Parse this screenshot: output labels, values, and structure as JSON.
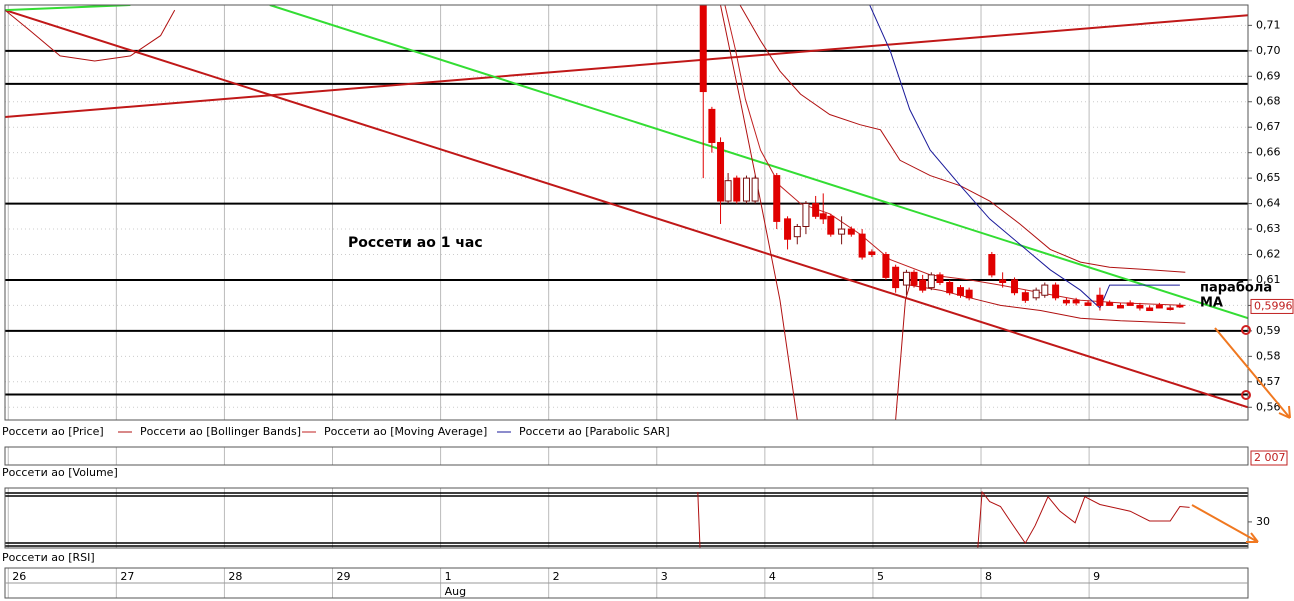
{
  "chart_data": [
    {
      "type": "candlestick",
      "title": "Россети ао  1 час",
      "annotations": [
        "парабола",
        "MA"
      ],
      "xlim": [
        -0.03,
        11.47
      ],
      "xticks": [
        {
          "value": 0,
          "label": "26"
        },
        {
          "value": 1,
          "label": "27"
        },
        {
          "value": 2,
          "label": "28"
        },
        {
          "value": 3,
          "label": "29"
        },
        {
          "value": 4,
          "label": "1"
        },
        {
          "value": 5,
          "label": "2"
        },
        {
          "value": 6,
          "label": "3"
        },
        {
          "value": 7,
          "label": "4"
        },
        {
          "value": 8,
          "label": "5"
        },
        {
          "value": 9,
          "label": "8"
        },
        {
          "value": 10,
          "label": "9"
        }
      ],
      "month_label": "Aug",
      "ylim": [
        0.555,
        0.718
      ],
      "yticks": [
        {
          "value": 0.56,
          "label": "0,56"
        },
        {
          "value": 0.57,
          "label": "0,57"
        },
        {
          "value": 0.58,
          "label": "0,58"
        },
        {
          "value": 0.59,
          "label": "0,59"
        },
        {
          "value": 0.6,
          "label": "0,60"
        },
        {
          "value": 0.61,
          "label": "0,61"
        },
        {
          "value": 0.62,
          "label": "0,62"
        },
        {
          "value": 0.63,
          "label": "0,63"
        },
        {
          "value": 0.64,
          "label": "0,64"
        },
        {
          "value": 0.65,
          "label": "0,65"
        },
        {
          "value": 0.66,
          "label": "0,66"
        },
        {
          "value": 0.67,
          "label": "0,67"
        },
        {
          "value": 0.68,
          "label": "0,68"
        },
        {
          "value": 0.69,
          "label": "0,69"
        },
        {
          "value": 0.7,
          "label": "0,70"
        },
        {
          "value": 0.71,
          "label": "0,71"
        }
      ],
      "grid": true,
      "last_price": {
        "value": 0.5996,
        "label": "0,5996"
      },
      "candles": {
        "name": "Россети ао [Price]",
        "color": "#e00000",
        "x": [
          6.43,
          6.51,
          6.59,
          6.66,
          6.74,
          6.83,
          6.91,
          7.11,
          7.21,
          7.3,
          7.38,
          7.47,
          7.54,
          7.61,
          7.71,
          7.8,
          7.9,
          7.99,
          8.12,
          8.21,
          8.31,
          8.38,
          8.46,
          8.54,
          8.62,
          8.71,
          8.81,
          8.89,
          9.1,
          9.2,
          9.31,
          9.41,
          9.51,
          9.59,
          9.69,
          9.79,
          9.88,
          9.99,
          10.1,
          10.19,
          10.29,
          10.38,
          10.47,
          10.56,
          10.65,
          10.75,
          10.84
        ],
        "open": [
          0.718,
          0.677,
          0.664,
          0.641,
          0.65,
          0.641,
          0.641,
          0.651,
          0.634,
          0.627,
          0.631,
          0.64,
          0.636,
          0.635,
          0.628,
          0.63,
          0.628,
          0.621,
          0.62,
          0.615,
          0.608,
          0.613,
          0.61,
          0.607,
          0.612,
          0.609,
          0.607,
          0.606,
          0.62,
          0.61,
          0.61,
          0.605,
          0.603,
          0.604,
          0.608,
          0.602,
          0.602,
          0.601,
          0.604,
          0.601,
          0.6,
          0.601,
          0.6,
          0.599,
          0.6,
          0.599,
          0.6
        ],
        "high": [
          0.718,
          0.678,
          0.666,
          0.652,
          0.651,
          0.651,
          0.651,
          0.652,
          0.635,
          0.632,
          0.641,
          0.643,
          0.644,
          0.636,
          0.635,
          0.631,
          0.63,
          0.622,
          0.621,
          0.616,
          0.614,
          0.614,
          0.612,
          0.613,
          0.613,
          0.61,
          0.608,
          0.607,
          0.621,
          0.613,
          0.611,
          0.606,
          0.607,
          0.609,
          0.609,
          0.603,
          0.603,
          0.602,
          0.607,
          0.602,
          0.601,
          0.602,
          0.601,
          0.6,
          0.601,
          0.6,
          0.601
        ],
        "low": [
          0.65,
          0.66,
          0.632,
          0.64,
          0.64,
          0.64,
          0.64,
          0.63,
          0.622,
          0.624,
          0.628,
          0.634,
          0.632,
          0.627,
          0.624,
          0.627,
          0.618,
          0.619,
          0.61,
          0.605,
          0.604,
          0.607,
          0.605,
          0.606,
          0.608,
          0.604,
          0.603,
          0.602,
          0.611,
          0.607,
          0.604,
          0.601,
          0.602,
          0.603,
          0.602,
          0.6,
          0.6,
          0.6,
          0.598,
          0.6,
          0.599,
          0.6,
          0.598,
          0.598,
          0.599,
          0.598,
          0.599
        ],
        "close": [
          0.684,
          0.664,
          0.641,
          0.649,
          0.641,
          0.65,
          0.65,
          0.633,
          0.626,
          0.631,
          0.64,
          0.635,
          0.634,
          0.628,
          0.63,
          0.628,
          0.619,
          0.62,
          0.611,
          0.607,
          0.613,
          0.608,
          0.606,
          0.612,
          0.609,
          0.605,
          0.604,
          0.603,
          0.612,
          0.609,
          0.605,
          0.602,
          0.606,
          0.608,
          0.603,
          0.601,
          0.601,
          0.6,
          0.6,
          0.6,
          0.599,
          0.6,
          0.599,
          0.598,
          0.599,
          0.599,
          0.6
        ]
      },
      "series": [
        {
          "name": "Россети ао [Bollinger Bands]",
          "color": "#b01010",
          "x": [
            -0.03,
            0.2,
            0.48,
            0.8,
            1.13,
            1.41,
            1.54,
            null,
            6.77,
            6.96,
            7.14,
            7.33,
            7.6,
            7.88,
            8.07,
            8.25,
            8.53,
            8.81,
            9.08,
            9.36,
            9.64,
            9.92,
            10.19,
            10.56,
            10.89,
            null,
            6.59,
            6.77,
            6.96,
            7.14,
            7.3,
            null,
            8.21,
            8.3,
            8.34,
            8.62,
            8.99,
            9.18,
            9.55,
            9.92,
            10.29,
            10.89
          ],
          "values": [
            0.716,
            0.708,
            0.698,
            0.696,
            0.698,
            0.706,
            0.716,
            null,
            0.718,
            0.704,
            0.692,
            0.683,
            0.675,
            0.671,
            0.669,
            0.657,
            0.651,
            0.647,
            0.641,
            0.632,
            0.622,
            0.617,
            0.615,
            0.614,
            0.613,
            null,
            0.718,
            0.681,
            0.641,
            0.602,
            0.555,
            null,
            0.555,
            0.602,
            0.608,
            0.606,
            0.602,
            0.6,
            0.598,
            0.595,
            0.594,
            0.593
          ]
        },
        {
          "name": "Россети ао [Moving Average]",
          "color": "#c02020",
          "x": [
            6.63,
            6.73,
            6.82,
            6.96,
            7.14,
            7.33,
            7.6,
            7.88,
            8.16,
            8.53,
            8.9,
            9.18,
            9.55,
            9.92,
            10.29,
            10.89
          ],
          "values": [
            0.718,
            0.7,
            0.681,
            0.661,
            0.647,
            0.64,
            0.636,
            0.628,
            0.618,
            0.612,
            0.61,
            0.608,
            0.605,
            0.602,
            0.601,
            0.6
          ]
        },
        {
          "name": "Россети ао [Parabolic SAR]",
          "color": "#1a1a9a",
          "x": [
            7.97,
            8.16,
            8.34,
            8.53,
            8.81,
            9.08,
            9.36,
            9.64,
            9.92,
            10.1,
            10.19,
            10.84
          ],
          "values": [
            0.718,
            0.7,
            0.677,
            0.661,
            0.647,
            0.634,
            0.624,
            0.614,
            0.606,
            0.599,
            0.608,
            0.608
          ]
        }
      ],
      "trendlines": [
        {
          "color": "#c01818",
          "x": [
            -0.03,
            11.47
          ],
          "values": [
            0.716,
            0.56
          ]
        },
        {
          "color": "#c01818",
          "x": [
            -0.03,
            11.47
          ],
          "values": [
            0.674,
            0.714
          ]
        },
        {
          "color": "#33dd33",
          "x": [
            -0.03,
            1.13
          ],
          "values": [
            0.716,
            0.718
          ]
        },
        {
          "color": "#33dd33",
          "x": [
            2.42,
            11.47
          ],
          "values": [
            0.718,
            0.595
          ]
        }
      ],
      "levels": [
        0.7,
        0.687,
        0.64,
        0.61,
        0.59,
        0.565
      ]
    },
    {
      "type": "bar",
      "name": "Россети ао [Volume]",
      "last_value": {
        "value": 2007,
        "label": "2 007"
      }
    },
    {
      "type": "line",
      "name": "Россети ао [RSI]",
      "color": "#b01010",
      "ylim": [
        21,
        41
      ],
      "yticks": [
        30
      ],
      "x": [
        6.38,
        6.4,
        null,
        8.97,
        9.01,
        9.08,
        9.18,
        9.27,
        9.41,
        9.5,
        9.62,
        9.73,
        9.87,
        9.96,
        10.1,
        10.38,
        10.56,
        10.75,
        10.84,
        10.93
      ],
      "values": [
        40.3,
        21,
        null,
        21,
        40.3,
        37,
        35.3,
        30.3,
        22.7,
        28.7,
        38.7,
        33.7,
        29.7,
        38.7,
        36,
        33.7,
        30.3,
        30.3,
        35.3,
        35
      ]
    }
  ]
}
